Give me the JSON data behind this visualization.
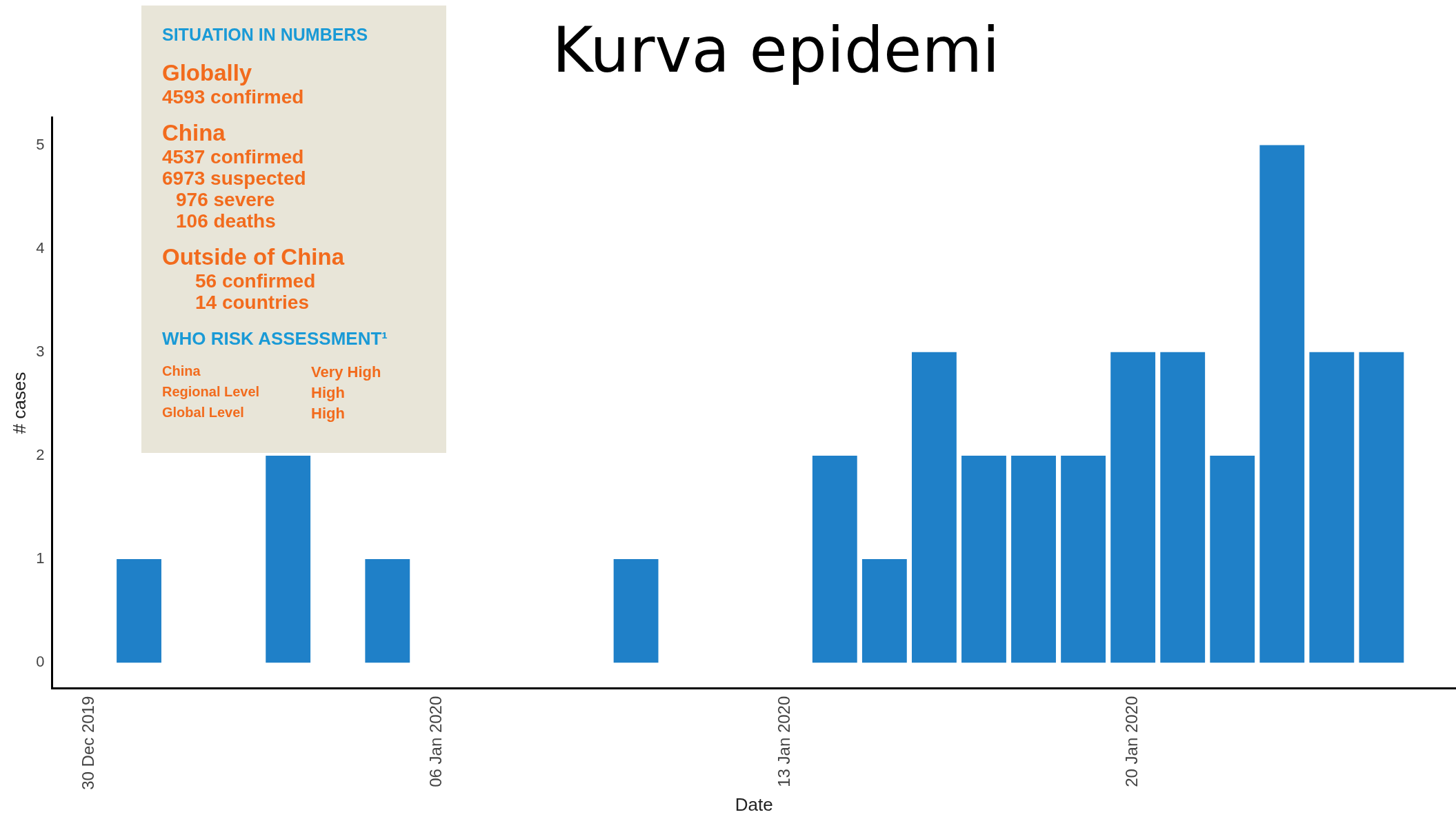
{
  "chart_data": [
    {
      "type": "bar",
      "title": "Kurva epidemi",
      "xlabel": "Date",
      "ylabel": "# cases",
      "x": [
        "2019-12-31",
        "2020-01-03",
        "2020-01-05",
        "2020-01-10",
        "2020-01-14",
        "2020-01-15",
        "2020-01-16",
        "2020-01-17",
        "2020-01-18",
        "2020-01-19",
        "2020-01-20",
        "2020-01-21",
        "2020-01-22",
        "2020-01-23",
        "2020-01-24",
        "2020-01-25"
      ],
      "values": [
        1,
        2,
        1,
        1,
        2,
        1,
        3,
        2,
        2,
        2,
        3,
        3,
        2,
        5,
        3,
        3
      ],
      "color": "#1f80c8",
      "xlim": [
        "2019-12-29T06:00",
        "2020-01-26T12:00"
      ],
      "xticks": [
        {
          "value": "2019-12-30",
          "label": "30 Dec 2019"
        },
        {
          "value": "2020-01-06",
          "label": "06 Jan 2020"
        },
        {
          "value": "2020-01-13",
          "label": "13 Jan 2020"
        },
        {
          "value": "2020-01-20",
          "label": "20 Jan 2020"
        }
      ],
      "ylim": [
        -0.25,
        5.27
      ],
      "yticks": [
        0,
        1,
        2,
        3,
        4,
        5
      ],
      "grid": false,
      "legend": false
    },
    {
      "type": "other",
      "title": "SITUATION IN NUMBERS",
      "annotations": [
        "Globally",
        "4593 confirmed",
        "China",
        "4537 confirmed",
        "6973 suspected",
        "976 severe",
        "106 deaths",
        "Outside of China",
        "56 confirmed",
        "14 countries",
        "WHO RISK ASSESSMENT¹",
        "China",
        "Very High",
        "Regional Level",
        "High",
        "Global Level",
        "High"
      ]
    }
  ]
}
